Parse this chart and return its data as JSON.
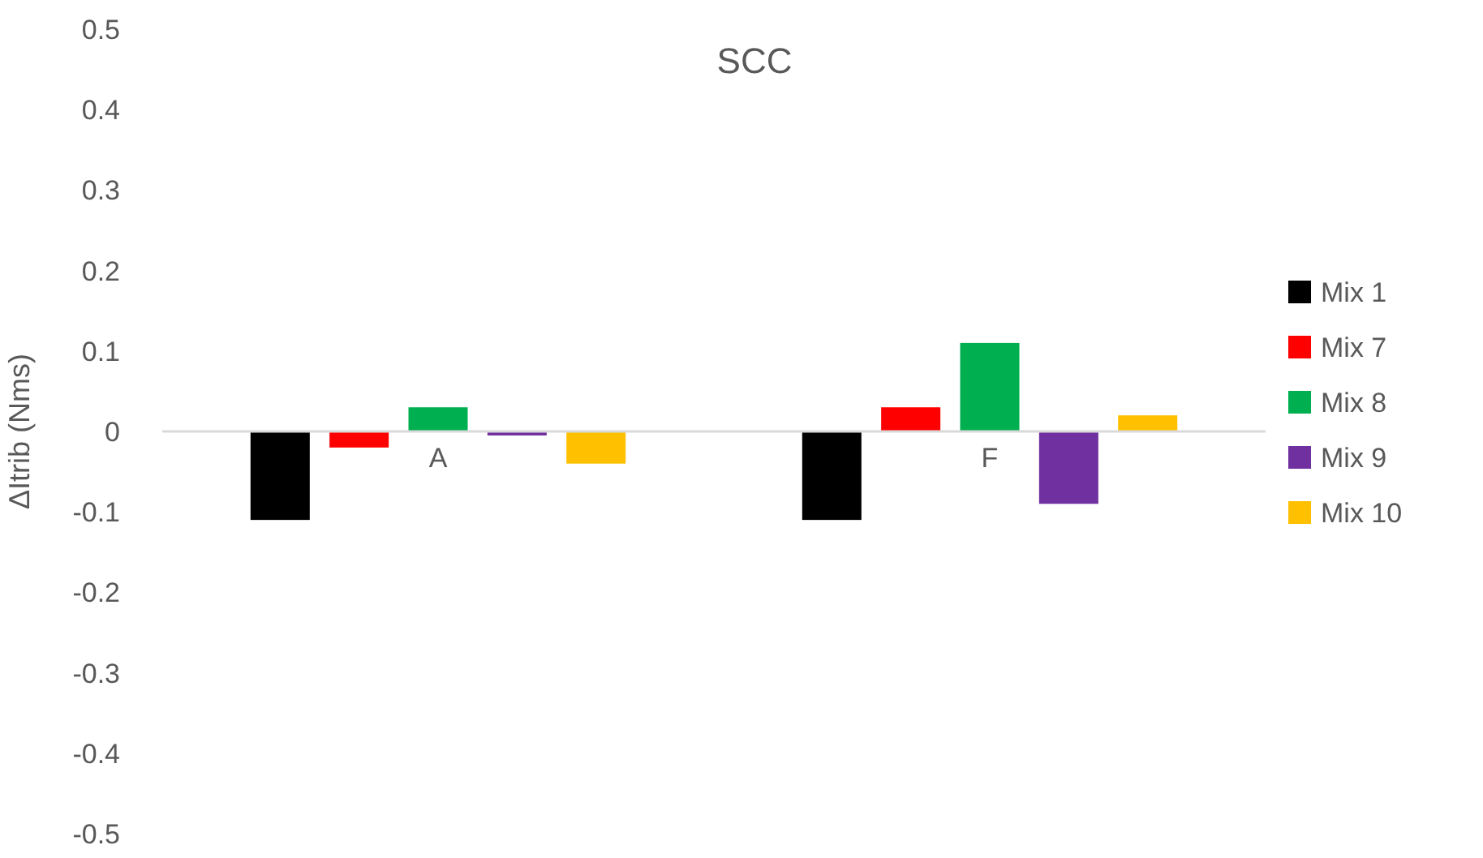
{
  "chart_data": {
    "type": "bar",
    "title": "SCC",
    "ylabel": "ΔItrib (Nms)",
    "categories": [
      "A",
      "F"
    ],
    "series": [
      {
        "name": "Mix 1",
        "color": "#000000",
        "values": [
          -0.11,
          -0.11
        ]
      },
      {
        "name": "Mix 7",
        "color": "#ff0000",
        "values": [
          -0.02,
          0.03
        ]
      },
      {
        "name": "Mix 8",
        "color": "#00b050",
        "values": [
          0.03,
          0.11
        ]
      },
      {
        "name": "Mix 9",
        "color": "#7030a0",
        "values": [
          -0.005,
          -0.09
        ]
      },
      {
        "name": "Mix 10",
        "color": "#ffc000",
        "values": [
          -0.04,
          0.02
        ]
      }
    ],
    "ylim": [
      -0.5,
      0.5
    ],
    "yticks": [
      -0.5,
      -0.4,
      -0.3,
      -0.2,
      -0.1,
      0,
      0.1,
      0.2,
      0.3,
      0.4,
      0.5
    ],
    "grid": false,
    "legend": "right"
  }
}
